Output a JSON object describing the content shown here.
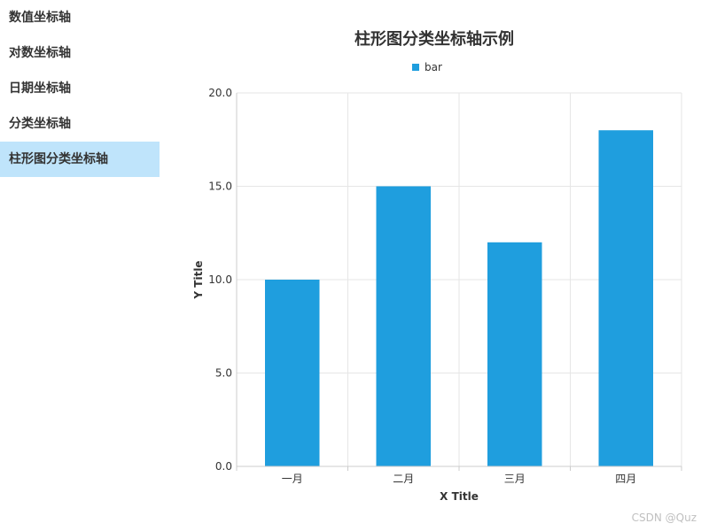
{
  "sidebar": {
    "items": [
      {
        "label": "数值坐标轴",
        "active": false
      },
      {
        "label": "对数坐标轴",
        "active": false
      },
      {
        "label": "日期坐标轴",
        "active": false
      },
      {
        "label": "分类坐标轴",
        "active": false
      },
      {
        "label": "柱形图分类坐标轴",
        "active": true
      }
    ],
    "active_color": "#bfe4fb"
  },
  "watermark": "CSDN @Quz",
  "chart_data": {
    "type": "bar",
    "title": "柱形图分类坐标轴示例",
    "categories": [
      "一月",
      "二月",
      "三月",
      "四月"
    ],
    "series": [
      {
        "name": "bar",
        "values": [
          10,
          15,
          12,
          18
        ],
        "color": "#1f9ede"
      }
    ],
    "xlabel": "X Title",
    "ylabel": "Y Title",
    "ylim": [
      0,
      20
    ],
    "yticks": [
      "0.0",
      "5.0",
      "10.0",
      "15.0",
      "20.0"
    ],
    "grid": true,
    "legend_position": "top-center"
  }
}
